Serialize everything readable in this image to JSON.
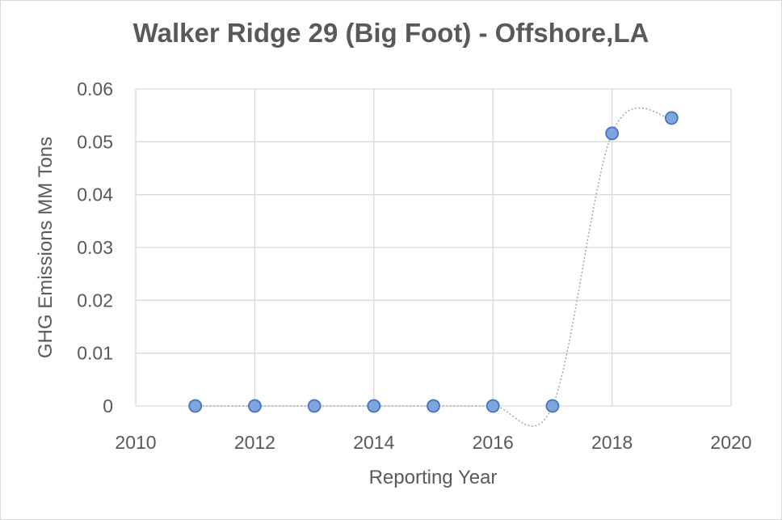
{
  "chart_data": {
    "type": "scatter",
    "title": "Walker Ridge 29 (Big Foot) - Offshore,LA",
    "xlabel": "Reporting Year",
    "ylabel": "GHG Emissions MM Tons",
    "xlim": [
      2010,
      2020
    ],
    "ylim": [
      0,
      0.06
    ],
    "xticks": [
      "2010",
      "2012",
      "2014",
      "2016",
      "2018",
      "2020"
    ],
    "yticks": [
      "0",
      "0.01",
      "0.02",
      "0.03",
      "0.04",
      "0.05",
      "0.06"
    ],
    "grid": true,
    "line_style": "dotted smoothed",
    "marker_color": "#7ea6dd",
    "marker_edge_color": "#4472c4",
    "line_color": "#a6a6a6",
    "points": [
      {
        "x": 2011,
        "y": 0
      },
      {
        "x": 2012,
        "y": 0
      },
      {
        "x": 2013,
        "y": 0
      },
      {
        "x": 2014,
        "y": 0
      },
      {
        "x": 2015,
        "y": 0
      },
      {
        "x": 2016,
        "y": 0
      },
      {
        "x": 2017,
        "y": 0
      },
      {
        "x": 2018,
        "y": 0.0516
      },
      {
        "x": 2019,
        "y": 0.0545
      }
    ]
  }
}
